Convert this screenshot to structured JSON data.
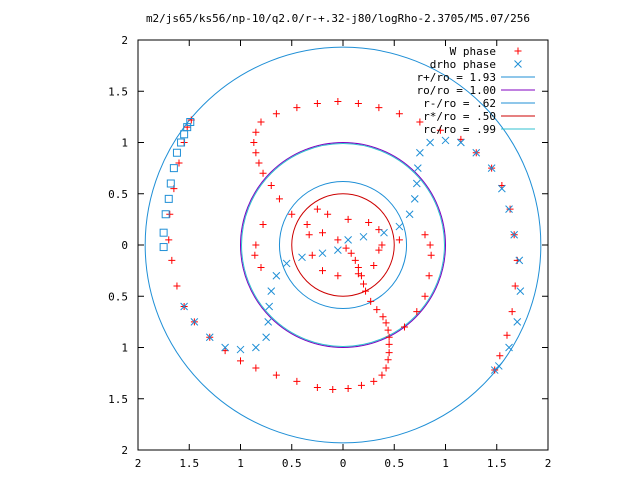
{
  "chart_data": {
    "type": "scatter",
    "title": "m2/js65/ks56/np-10/q2.0/r-+.32-j80/logRho-2.3705/M5.07/256",
    "xlabel": "",
    "ylabel": "",
    "xlim": [
      -2,
      2
    ],
    "ylim": [
      -2,
      2
    ],
    "grid": false,
    "legend_position": "top-right",
    "x_tick_labels": [
      "2",
      "1.5",
      "1",
      "0.5",
      "0",
      "0.5",
      "1",
      "1.5",
      "2"
    ],
    "y_tick_labels": [
      "2",
      "1.5",
      "1",
      "0.5",
      "0",
      "0.5",
      "1",
      "1.5",
      "2"
    ],
    "x_ticks": [
      -2,
      -1.5,
      -1,
      -0.5,
      0,
      0.5,
      1,
      1.5,
      2
    ],
    "y_ticks": [
      2,
      1.5,
      1,
      0.5,
      0,
      -0.5,
      -1,
      -1.5,
      -2
    ],
    "series": [
      {
        "name": "W phase",
        "marker": "plus",
        "color": "#ff0000",
        "points": [
          [
            0.03,
            -0.03
          ],
          [
            0.08,
            -0.08
          ],
          [
            0.12,
            -0.15
          ],
          [
            0.15,
            -0.22
          ],
          [
            0.18,
            -0.3
          ],
          [
            0.2,
            -0.38
          ],
          [
            0.22,
            -0.45
          ],
          [
            0.27,
            -0.55
          ],
          [
            0.33,
            -0.63
          ],
          [
            0.39,
            -0.7
          ],
          [
            0.42,
            -0.76
          ],
          [
            0.44,
            -0.83
          ],
          [
            0.45,
            -0.9
          ],
          [
            0.45,
            -0.97
          ],
          [
            0.45,
            -1.05
          ],
          [
            0.44,
            -1.12
          ],
          [
            0.42,
            -1.2
          ],
          [
            0.38,
            -1.27
          ],
          [
            0.3,
            -1.33
          ],
          [
            0.18,
            -1.37
          ],
          [
            0.05,
            -1.4
          ],
          [
            -0.1,
            -1.41
          ],
          [
            -0.25,
            -1.39
          ],
          [
            -0.45,
            -1.33
          ],
          [
            -0.65,
            -1.27
          ],
          [
            -0.85,
            -1.2
          ],
          [
            -1.0,
            -1.13
          ],
          [
            -1.15,
            -1.03
          ],
          [
            -1.3,
            -0.9
          ],
          [
            -1.45,
            -0.75
          ],
          [
            -1.55,
            -0.6
          ],
          [
            -1.62,
            -0.4
          ],
          [
            -1.67,
            -0.15
          ],
          [
            -1.7,
            0.05
          ],
          [
            -1.69,
            0.3
          ],
          [
            -1.65,
            0.55
          ],
          [
            -1.6,
            0.8
          ],
          [
            -1.55,
            1.0
          ],
          [
            -1.52,
            1.15
          ],
          [
            -1.48,
            1.22
          ],
          [
            -0.05,
            0.05
          ],
          [
            -0.2,
            0.12
          ],
          [
            -0.35,
            0.2
          ],
          [
            -0.5,
            0.3
          ],
          [
            -0.62,
            0.45
          ],
          [
            -0.7,
            0.58
          ],
          [
            -0.78,
            0.7
          ],
          [
            -0.82,
            0.8
          ],
          [
            -0.85,
            0.9
          ],
          [
            -0.87,
            1.0
          ],
          [
            -0.85,
            1.1
          ],
          [
            -0.8,
            1.2
          ],
          [
            -0.65,
            1.28
          ],
          [
            -0.45,
            1.34
          ],
          [
            -0.25,
            1.38
          ],
          [
            -0.05,
            1.4
          ],
          [
            0.15,
            1.38
          ],
          [
            0.35,
            1.34
          ],
          [
            0.55,
            1.28
          ],
          [
            0.75,
            1.2
          ],
          [
            0.95,
            1.12
          ],
          [
            1.15,
            1.03
          ],
          [
            1.3,
            0.9
          ],
          [
            1.45,
            0.75
          ],
          [
            1.55,
            0.58
          ],
          [
            1.63,
            0.35
          ],
          [
            1.67,
            0.1
          ],
          [
            1.7,
            -0.15
          ],
          [
            1.68,
            -0.4
          ],
          [
            1.65,
            -0.65
          ],
          [
            1.6,
            -0.88
          ],
          [
            1.53,
            -1.08
          ],
          [
            1.48,
            -1.22
          ],
          [
            0.35,
            -0.05
          ],
          [
            0.55,
            0.05
          ],
          [
            0.8,
            0.1
          ],
          [
            0.85,
            0.0
          ],
          [
            0.86,
            -0.1
          ],
          [
            0.84,
            -0.3
          ],
          [
            0.8,
            -0.5
          ],
          [
            0.72,
            -0.65
          ],
          [
            0.6,
            -0.8
          ],
          [
            -0.25,
            0.35
          ],
          [
            -0.15,
            0.3
          ],
          [
            0.05,
            0.25
          ],
          [
            0.25,
            0.22
          ],
          [
            0.35,
            0.15
          ],
          [
            0.38,
            0.0
          ],
          [
            0.3,
            -0.2
          ],
          [
            0.15,
            -0.28
          ],
          [
            -0.05,
            -0.3
          ],
          [
            -0.2,
            -0.25
          ],
          [
            -0.3,
            -0.1
          ],
          [
            -0.33,
            0.1
          ],
          [
            -0.78,
            0.2
          ],
          [
            -0.85,
            0.0
          ],
          [
            -0.86,
            -0.1
          ],
          [
            -0.8,
            -0.22
          ]
        ]
      },
      {
        "name": "drho phase",
        "marker": "cross",
        "color": "#1f8fd6",
        "points": [
          [
            -0.05,
            -0.05
          ],
          [
            -0.2,
            -0.08
          ],
          [
            -0.4,
            -0.12
          ],
          [
            -0.55,
            -0.18
          ],
          [
            -0.65,
            -0.3
          ],
          [
            -0.7,
            -0.45
          ],
          [
            -0.72,
            -0.6
          ],
          [
            -0.73,
            -0.75
          ],
          [
            -0.75,
            -0.9
          ],
          [
            -0.85,
            -1.0
          ],
          [
            -1.0,
            -1.02
          ],
          [
            -1.15,
            -1.0
          ],
          [
            -1.3,
            -0.9
          ],
          [
            -1.45,
            -0.75
          ],
          [
            -1.55,
            -0.6
          ],
          [
            0.05,
            0.05
          ],
          [
            0.2,
            0.08
          ],
          [
            0.4,
            0.12
          ],
          [
            0.55,
            0.18
          ],
          [
            0.65,
            0.3
          ],
          [
            0.7,
            0.45
          ],
          [
            0.72,
            0.6
          ],
          [
            0.73,
            0.75
          ],
          [
            0.75,
            0.9
          ],
          [
            0.85,
            1.0
          ],
          [
            1.0,
            1.02
          ],
          [
            1.15,
            1.0
          ],
          [
            1.3,
            0.9
          ],
          [
            1.45,
            0.75
          ],
          [
            1.55,
            0.55
          ],
          [
            1.62,
            0.35
          ],
          [
            1.67,
            0.1
          ],
          [
            1.72,
            -0.15
          ],
          [
            1.73,
            -0.45
          ],
          [
            1.7,
            -0.75
          ],
          [
            1.62,
            -1.0
          ],
          [
            1.52,
            -1.18
          ],
          [
            1.48,
            -1.22
          ]
        ]
      },
      {
        "name": "",
        "marker": "square",
        "color": "#1f8fd6",
        "points": [
          [
            -1.75,
            0.12
          ],
          [
            -1.75,
            -0.02
          ],
          [
            -1.73,
            0.3
          ],
          [
            -1.7,
            0.45
          ],
          [
            -1.68,
            0.6
          ],
          [
            -1.65,
            0.75
          ],
          [
            -1.62,
            0.9
          ],
          [
            -1.58,
            1.0
          ],
          [
            -1.55,
            1.08
          ],
          [
            -1.52,
            1.15
          ],
          [
            -1.49,
            1.2
          ]
        ]
      }
    ],
    "circles": [
      {
        "name": "r+/ro = 1.93",
        "radius": 1.93,
        "color": "#1f8fd6"
      },
      {
        "name": "ro/ro = 1.00",
        "radius": 1.0,
        "color": "#8000c0"
      },
      {
        "name": "r-/ro = .62",
        "radius": 0.62,
        "color": "#1f8fd6"
      },
      {
        "name": "r*/ro = .50",
        "radius": 0.5,
        "color": "#cc0000"
      },
      {
        "name": "rc/ro = .99",
        "radius": 0.99,
        "color": "#30c0d0"
      }
    ]
  }
}
